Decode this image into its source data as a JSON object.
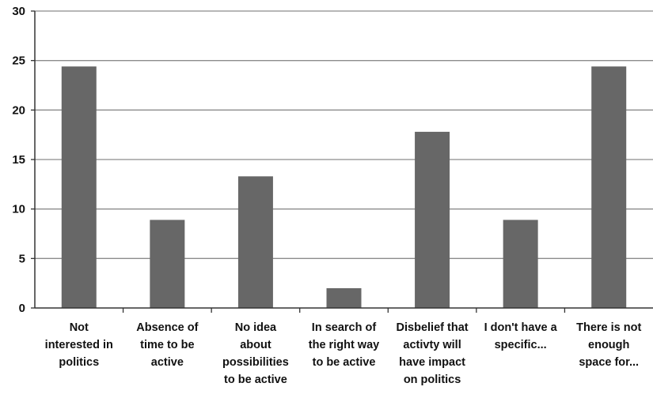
{
  "chart_data": {
    "type": "bar",
    "categories": [
      [
        "Not",
        "interested in",
        "politics"
      ],
      [
        "Absence of",
        "time to be",
        "active"
      ],
      [
        "No idea",
        "about",
        "possibilities",
        "to be active"
      ],
      [
        "In search of",
        "the right way",
        "to be active"
      ],
      [
        "Disbelief that",
        "activty will",
        "have impact",
        "on politics"
      ],
      [
        "I don't have a",
        "specific..."
      ],
      [
        "There is not",
        "enough",
        "space for..."
      ]
    ],
    "values": [
      24.4,
      8.9,
      13.3,
      2.0,
      17.8,
      8.9,
      24.4
    ],
    "title": "",
    "xlabel": "",
    "ylabel": "",
    "ylim": [
      0,
      30
    ],
    "yticks": [
      "0",
      "5",
      "10",
      "15",
      "20",
      "25",
      "30"
    ],
    "grid": true,
    "legend": "none",
    "bar_color": "#676767",
    "grid_color": "#8c8c8c"
  }
}
